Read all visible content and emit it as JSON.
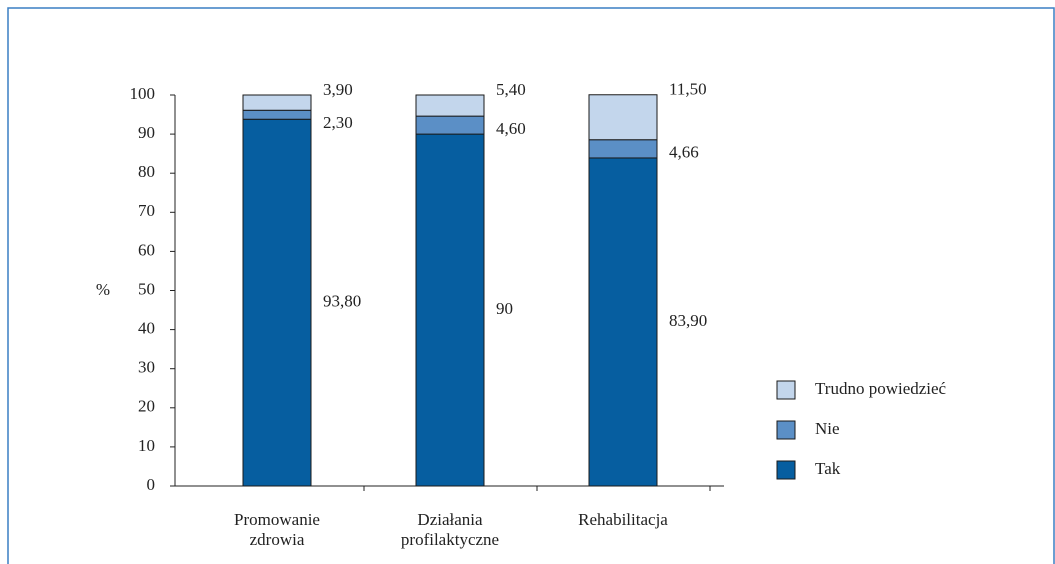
{
  "chart_data": {
    "type": "stacked_bar",
    "categories": [
      [
        "Promowanie",
        "zdrowia"
      ],
      [
        "Działania",
        "profilaktyczne"
      ],
      [
        "Rehabilitacja"
      ]
    ],
    "ylabel": "%",
    "series": [
      {
        "name": "Tak",
        "color": "#065ea0",
        "values": [
          93.8,
          90,
          83.9
        ],
        "value_labels": [
          "93,80",
          "90",
          "83,90"
        ]
      },
      {
        "name": "Nie",
        "color": "#5b8fc6",
        "values": [
          2.3,
          4.6,
          4.66
        ],
        "value_labels": [
          "2,30",
          "4,60",
          "4,66"
        ]
      },
      {
        "name": "Trudno powiedzieć",
        "color": "#c3d6ec",
        "values": [
          3.9,
          5.4,
          11.5
        ],
        "value_labels": [
          "3,90",
          "5,40",
          "11,50"
        ]
      }
    ],
    "ylim": [
      0,
      100
    ],
    "yticks": [
      0,
      10,
      20,
      30,
      40,
      50,
      60,
      70,
      80,
      90,
      100
    ],
    "legend": "right"
  }
}
